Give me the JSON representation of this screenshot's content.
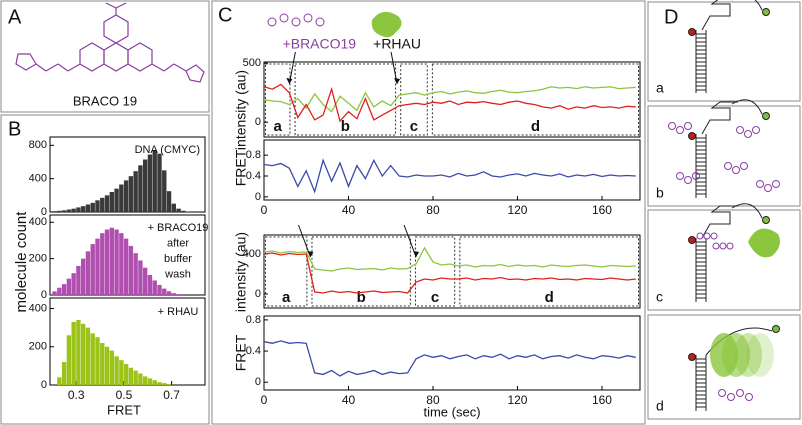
{
  "panel_labels": [
    "A",
    "B",
    "C",
    "D"
  ],
  "molecule_name": "BRACO 19",
  "d_labels": [
    "a",
    "b",
    "c",
    "d"
  ],
  "chart_data": [
    {
      "type": "histogram",
      "color": "#3a3a3a",
      "bins": [
        0.2,
        0.22,
        0.24,
        0.26,
        0.28,
        0.3,
        0.32,
        0.34,
        0.36,
        0.38,
        0.4,
        0.42,
        0.44,
        0.46,
        0.48,
        0.5,
        0.52,
        0.54,
        0.56,
        0.58,
        0.6,
        0.62,
        0.64,
        0.66,
        0.68,
        0.7,
        0.72,
        0.74,
        0.76,
        0.78,
        0.8,
        0.82,
        0.84
      ],
      "values": [
        10,
        15,
        20,
        30,
        40,
        55,
        70,
        90,
        110,
        140,
        170,
        200,
        240,
        280,
        330,
        380,
        430,
        490,
        560,
        630,
        690,
        740,
        700,
        500,
        250,
        100,
        40,
        15,
        5,
        0,
        0,
        0
      ],
      "xlim": [
        0.19,
        0.84
      ],
      "ylim": [
        0,
        900
      ],
      "yticks": [
        0,
        400,
        800
      ],
      "annotation": "DNA (CMYC)"
    },
    {
      "type": "histogram",
      "color": "#b04fb0",
      "bins": [
        0.2,
        0.22,
        0.24,
        0.26,
        0.28,
        0.3,
        0.32,
        0.34,
        0.36,
        0.38,
        0.4,
        0.42,
        0.44,
        0.46,
        0.48,
        0.5,
        0.52,
        0.54,
        0.56,
        0.58,
        0.6,
        0.62,
        0.64,
        0.66,
        0.68,
        0.7,
        0.72,
        0.74,
        0.76,
        0.78,
        0.8,
        0.82,
        0.84
      ],
      "values": [
        20,
        40,
        60,
        90,
        120,
        160,
        200,
        240,
        280,
        310,
        340,
        360,
        370,
        360,
        340,
        310,
        270,
        230,
        190,
        150,
        110,
        80,
        55,
        35,
        20,
        10,
        5,
        0,
        0,
        0,
        0,
        0
      ],
      "xlim": [
        0.19,
        0.84
      ],
      "ylim": [
        0,
        440
      ],
      "yticks": [
        0,
        200,
        400
      ],
      "annotation": [
        "+ BRACO19",
        "after",
        "buffer",
        "wash"
      ],
      "ylabel": "molecule count"
    },
    {
      "type": "histogram",
      "color": "#9cc31a",
      "bins": [
        0.2,
        0.22,
        0.24,
        0.26,
        0.28,
        0.3,
        0.32,
        0.34,
        0.36,
        0.38,
        0.4,
        0.42,
        0.44,
        0.46,
        0.48,
        0.5,
        0.52,
        0.54,
        0.56,
        0.58,
        0.6,
        0.62,
        0.64,
        0.66,
        0.68,
        0.7,
        0.72,
        0.74,
        0.76,
        0.78,
        0.8,
        0.82,
        0.84
      ],
      "values": [
        0,
        40,
        120,
        260,
        330,
        340,
        320,
        300,
        270,
        250,
        220,
        200,
        180,
        150,
        130,
        110,
        90,
        75,
        60,
        45,
        35,
        25,
        15,
        10,
        5,
        0,
        0,
        0,
        0,
        0,
        0,
        0
      ],
      "xlim": [
        0.19,
        0.84
      ],
      "ylim": [
        0,
        455
      ],
      "yticks": [
        0,
        200,
        400
      ],
      "xticks": [
        0.3,
        0.5,
        0.7
      ],
      "annotation": "+ RHAU",
      "xlabel": "FRET"
    },
    {
      "type": "line",
      "ylabel": "intensity (au)",
      "x": [
        0,
        4,
        8,
        12,
        16,
        20,
        24,
        28,
        32,
        36,
        40,
        44,
        48,
        52,
        56,
        60,
        64,
        68,
        72,
        76,
        80,
        84,
        88,
        92,
        96,
        100,
        104,
        108,
        112,
        116,
        120,
        124,
        128,
        132,
        136,
        140,
        144,
        148,
        152,
        156,
        160,
        164,
        168,
        172,
        176
      ],
      "series": [
        {
          "color": "#8cc63f",
          "values": [
            190,
            180,
            175,
            150,
            200,
            120,
            240,
            150,
            90,
            220,
            160,
            100,
            250,
            130,
            180,
            140,
            230,
            240,
            250,
            230,
            250,
            260,
            240,
            255,
            265,
            250,
            245,
            260,
            270,
            255,
            250,
            260,
            265,
            280,
            300,
            290,
            295,
            285,
            300,
            290,
            295,
            300,
            285,
            290,
            295
          ]
        },
        {
          "color": "#e0201b",
          "values": [
            300,
            280,
            320,
            250,
            40,
            150,
            20,
            60,
            280,
            10,
            90,
            30,
            200,
            20,
            60,
            100,
            140,
            150,
            160,
            150,
            170,
            160,
            180,
            150,
            170,
            165,
            175,
            160,
            150,
            170,
            180,
            160,
            150,
            130,
            120,
            140,
            110,
            130,
            120,
            140,
            125,
            130,
            120,
            135,
            130
          ]
        }
      ],
      "xlim": [
        0,
        178
      ],
      "ylim": [
        -125,
        510
      ],
      "yticks": [
        0,
        500
      ],
      "segments": [
        {
          "label": "a",
          "start": 0,
          "end": 13
        },
        {
          "label": "b",
          "start": 14,
          "end": 63
        },
        {
          "label": "c",
          "start": 64,
          "end": 78
        },
        {
          "label": "d",
          "start": 79,
          "end": 178
        }
      ],
      "events": [
        {
          "label": "+BRACO19",
          "time": 12
        },
        {
          "label": "+RHAU",
          "time": 63
        }
      ]
    },
    {
      "type": "line",
      "ylabel": "FRET",
      "x": [
        0,
        4,
        8,
        12,
        16,
        20,
        24,
        28,
        32,
        36,
        40,
        44,
        48,
        52,
        56,
        60,
        64,
        68,
        72,
        76,
        80,
        84,
        88,
        92,
        96,
        100,
        104,
        108,
        112,
        116,
        120,
        124,
        128,
        132,
        136,
        140,
        144,
        148,
        152,
        156,
        160,
        164,
        168,
        172,
        176
      ],
      "series": [
        {
          "color": "#3a4aa8",
          "values": [
            0.62,
            0.6,
            0.64,
            0.55,
            0.2,
            0.5,
            0.1,
            0.7,
            0.3,
            0.65,
            0.2,
            0.6,
            0.35,
            0.7,
            0.4,
            0.6,
            0.4,
            0.38,
            0.42,
            0.4,
            0.4,
            0.42,
            0.38,
            0.45,
            0.4,
            0.42,
            0.48,
            0.4,
            0.38,
            0.42,
            0.44,
            0.4,
            0.45,
            0.42,
            0.4,
            0.44,
            0.38,
            0.42,
            0.4,
            0.43,
            0.39,
            0.42,
            0.4,
            0.41,
            0.4
          ]
        }
      ],
      "xlim": [
        0,
        178
      ],
      "ylim": [
        -0.06,
        1.09
      ],
      "yticks": [
        0,
        0.4,
        0.8
      ],
      "xticks": [
        0,
        40,
        80,
        120,
        160
      ]
    },
    {
      "type": "line",
      "ylabel": "intensity (au)",
      "x": [
        0,
        4,
        8,
        12,
        16,
        20,
        24,
        28,
        32,
        36,
        40,
        44,
        48,
        52,
        56,
        60,
        64,
        68,
        72,
        76,
        80,
        84,
        88,
        92,
        96,
        100,
        104,
        108,
        112,
        116,
        120,
        124,
        128,
        132,
        136,
        140,
        144,
        148,
        152,
        156,
        160,
        164,
        168,
        172,
        176
      ],
      "series": [
        {
          "color": "#8cc63f",
          "values": [
            420,
            430,
            410,
            425,
            415,
            420,
            250,
            240,
            230,
            250,
            260,
            245,
            250,
            255,
            240,
            260,
            250,
            255,
            300,
            460,
            320,
            290,
            300,
            280,
            290,
            270,
            285,
            280,
            295,
            275,
            290,
            280,
            285,
            270,
            290,
            280,
            275,
            285,
            290,
            280,
            270,
            285,
            280,
            275,
            280
          ]
        },
        {
          "color": "#e0201b",
          "values": [
            400,
            410,
            390,
            405,
            395,
            400,
            20,
            10,
            30,
            15,
            25,
            10,
            20,
            30,
            15,
            20,
            25,
            10,
            120,
            150,
            140,
            160,
            150,
            150,
            160,
            140,
            155,
            150,
            165,
            145,
            150,
            140,
            155,
            150,
            160,
            145,
            150,
            140,
            155,
            150,
            145,
            160,
            150,
            140,
            150
          ]
        }
      ],
      "xlim": [
        0,
        178
      ],
      "ylim": [
        -140,
        590
      ],
      "yticks": [
        0,
        400
      ],
      "segments": [
        {
          "label": "a",
          "start": 0,
          "end": 21
        },
        {
          "label": "b",
          "start": 22,
          "end": 70
        },
        {
          "label": "c",
          "start": 71,
          "end": 91
        },
        {
          "label": "d",
          "start": 92,
          "end": 178
        }
      ],
      "events": [
        {
          "time": 22
        },
        {
          "time": 72
        }
      ]
    },
    {
      "type": "line",
      "ylabel": "FRET",
      "xlabel": "time (sec)",
      "x": [
        0,
        4,
        8,
        12,
        16,
        20,
        24,
        28,
        32,
        36,
        40,
        44,
        48,
        52,
        56,
        60,
        64,
        68,
        72,
        76,
        80,
        84,
        88,
        92,
        96,
        100,
        104,
        108,
        112,
        116,
        120,
        124,
        128,
        132,
        136,
        140,
        144,
        148,
        152,
        156,
        160,
        164,
        168,
        172,
        176
      ],
      "series": [
        {
          "color": "#3a4aa8",
          "values": [
            0.52,
            0.5,
            0.53,
            0.5,
            0.51,
            0.5,
            0.12,
            0.1,
            0.15,
            0.08,
            0.14,
            0.1,
            0.12,
            0.15,
            0.1,
            0.13,
            0.11,
            0.12,
            0.3,
            0.35,
            0.32,
            0.34,
            0.3,
            0.33,
            0.35,
            0.3,
            0.34,
            0.32,
            0.36,
            0.3,
            0.34,
            0.32,
            0.35,
            0.3,
            0.33,
            0.34,
            0.31,
            0.35,
            0.32,
            0.3,
            0.34,
            0.33,
            0.31,
            0.34,
            0.32
          ]
        }
      ],
      "xlim": [
        0,
        178
      ],
      "ylim": [
        -0.1,
        0.85
      ],
      "yticks": [
        0,
        0.4,
        0.8
      ],
      "xticks": [
        0,
        40,
        80,
        120,
        160
      ]
    }
  ]
}
